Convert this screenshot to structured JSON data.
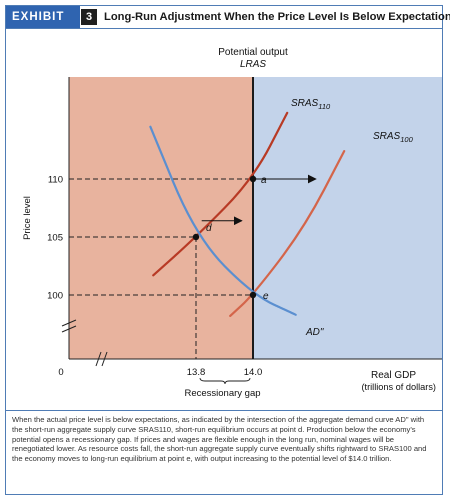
{
  "header": {
    "exhibit_label": "EXHIBIT",
    "exhibit_number": "3",
    "title": "Long-Run Adjustment When the Price Level Is Below Expectations"
  },
  "colors": {
    "left_region": "#e8b39e",
    "right_region": "#c3d3ea",
    "sras110": "#b83a25",
    "sras100": "#d4654a",
    "ad": "#5b8fd0",
    "lras": "#1a1a1a",
    "accent": "#2f64b0"
  },
  "chart_data": {
    "type": "line",
    "xlabel": "Real GDP",
    "xlabel_units": "(trillions of dollars)",
    "ylabel": "Price level",
    "x_ticks": [
      "13.8",
      "14.0"
    ],
    "y_ticks": [
      "100",
      "105",
      "110"
    ],
    "origin_label": "0",
    "lras_label": "Potential output",
    "lras_name": "LRAS",
    "lras_x": 14.0,
    "gap_x": 13.8,
    "gap_label": "Recessionary gap",
    "series": [
      {
        "name": "SRAS110",
        "label_main": "SRAS",
        "label_sub": "110",
        "points": [
          [
            13.65,
            101.7
          ],
          [
            13.8,
            105
          ],
          [
            14.0,
            110
          ],
          [
            14.12,
            115.7
          ]
        ]
      },
      {
        "name": "SRAS100",
        "label_main": "SRAS",
        "label_sub": "100",
        "points": [
          [
            13.92,
            98.2
          ],
          [
            14.0,
            100
          ],
          [
            14.18,
            105.8
          ],
          [
            14.32,
            112.4
          ]
        ]
      },
      {
        "name": "AD\"",
        "label_main": "AD\"",
        "label_sub": "",
        "points": [
          [
            13.64,
            114.5
          ],
          [
            13.8,
            105
          ],
          [
            14.0,
            100
          ],
          [
            14.15,
            98.3
          ]
        ]
      }
    ],
    "points": [
      {
        "label": "a",
        "x": 14.0,
        "y": 110
      },
      {
        "label": "d",
        "x": 13.8,
        "y": 105
      },
      {
        "label": "e",
        "x": 14.0,
        "y": 100
      }
    ],
    "arrows": [
      {
        "from_x": 14.01,
        "to_x": 14.22,
        "y": 110
      },
      {
        "from_x": 13.82,
        "to_x": 13.96,
        "y": 106.4
      }
    ],
    "axis_break": true
  },
  "caption": "When the actual price level is below expectations, as indicated by the intersection of the aggregate demand curve AD\" with the short-run aggregate supply curve SRAS110, short-run equilibrium occurs at point d. Production below the economy's potential opens a recessionary gap. If prices and wages are flexible enough in the long run, nominal wages will be renegotiated lower. As resource costs fall, the short-run aggregate supply curve eventually shifts rightward to SRAS100 and the economy moves to long-run equilibrium at point e, with output increasing to the potential level of $14.0 trillion."
}
